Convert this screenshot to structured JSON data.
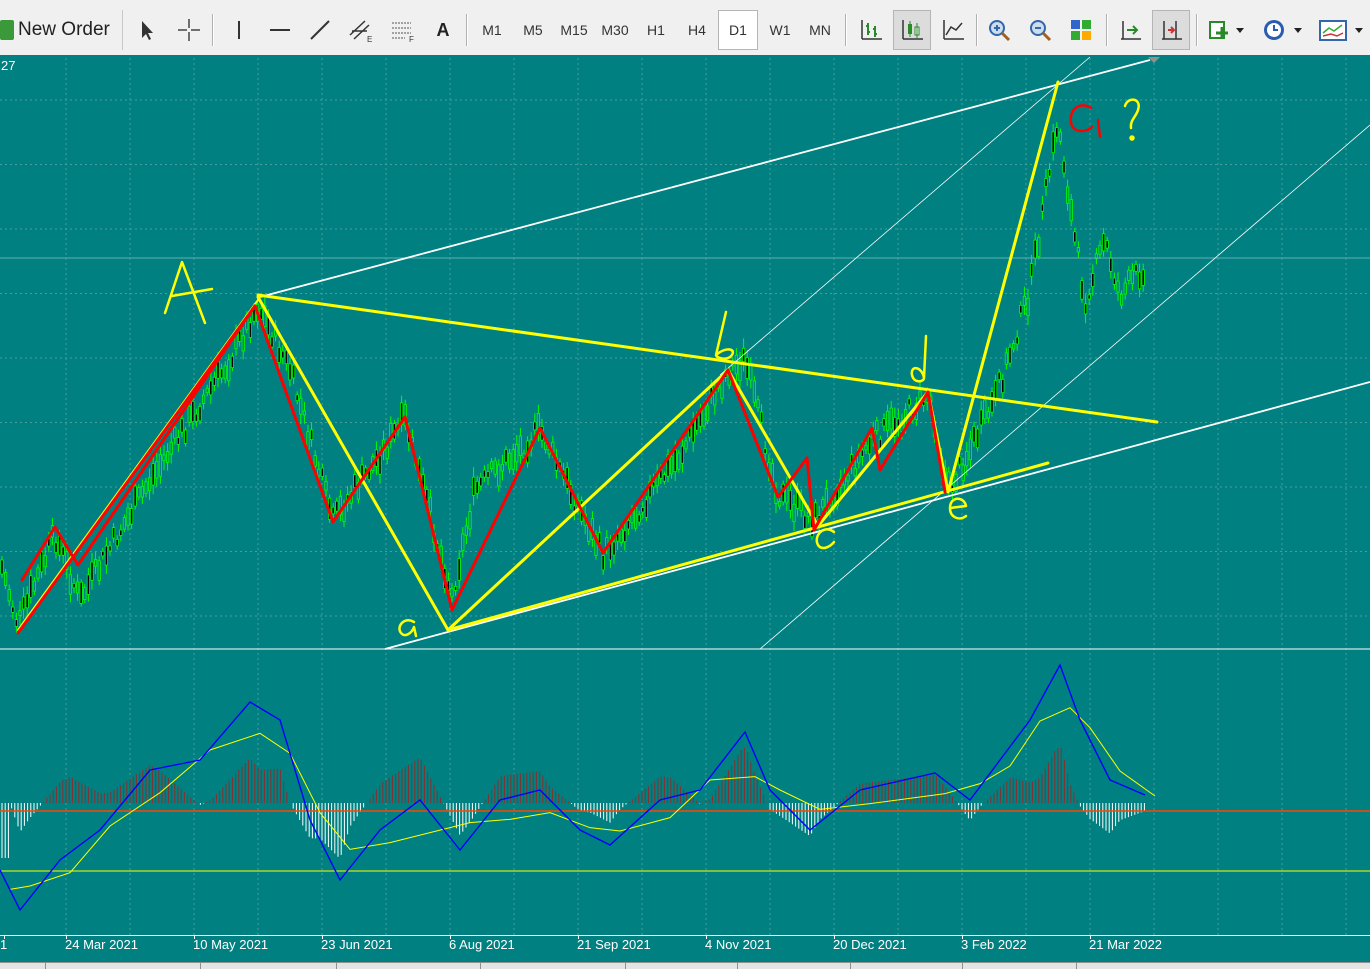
{
  "toolbar": {
    "new_order_label": "New Order",
    "text_tool_label": "A",
    "timeframes": [
      "M1",
      "M5",
      "M15",
      "M30",
      "H1",
      "H4",
      "D1",
      "W1",
      "MN"
    ],
    "active_timeframe": "D1"
  },
  "chart": {
    "price_label": "27",
    "background": "#008080",
    "bull_color": "#00ff00",
    "bear_color": "#00ff00",
    "annotation_yellow": "#ffff00",
    "annotation_red": "#ff0000",
    "channel_white": "#ffffff",
    "wave_labels": {
      "A": "A",
      "a": "a",
      "b": "b",
      "c": "c",
      "d": "d",
      "e": "e",
      "c1": "C₁ ?"
    }
  },
  "macd": {
    "main_color": "#0000ff",
    "signal_color": "#ffff00",
    "zero_line_color": "#ff4500",
    "hist_pos_color": "#8b2e2e",
    "hist_neg_color": "#ffffff"
  },
  "xaxis": {
    "labels": [
      "1",
      "24 Mar 2021",
      "10 May 2021",
      "23 Jun 2021",
      "6 Aug 2021",
      "21 Sep 2021",
      "4 Nov 2021",
      "20 Dec 2021",
      "3 Feb 2022",
      "21 Mar 2022"
    ]
  }
}
